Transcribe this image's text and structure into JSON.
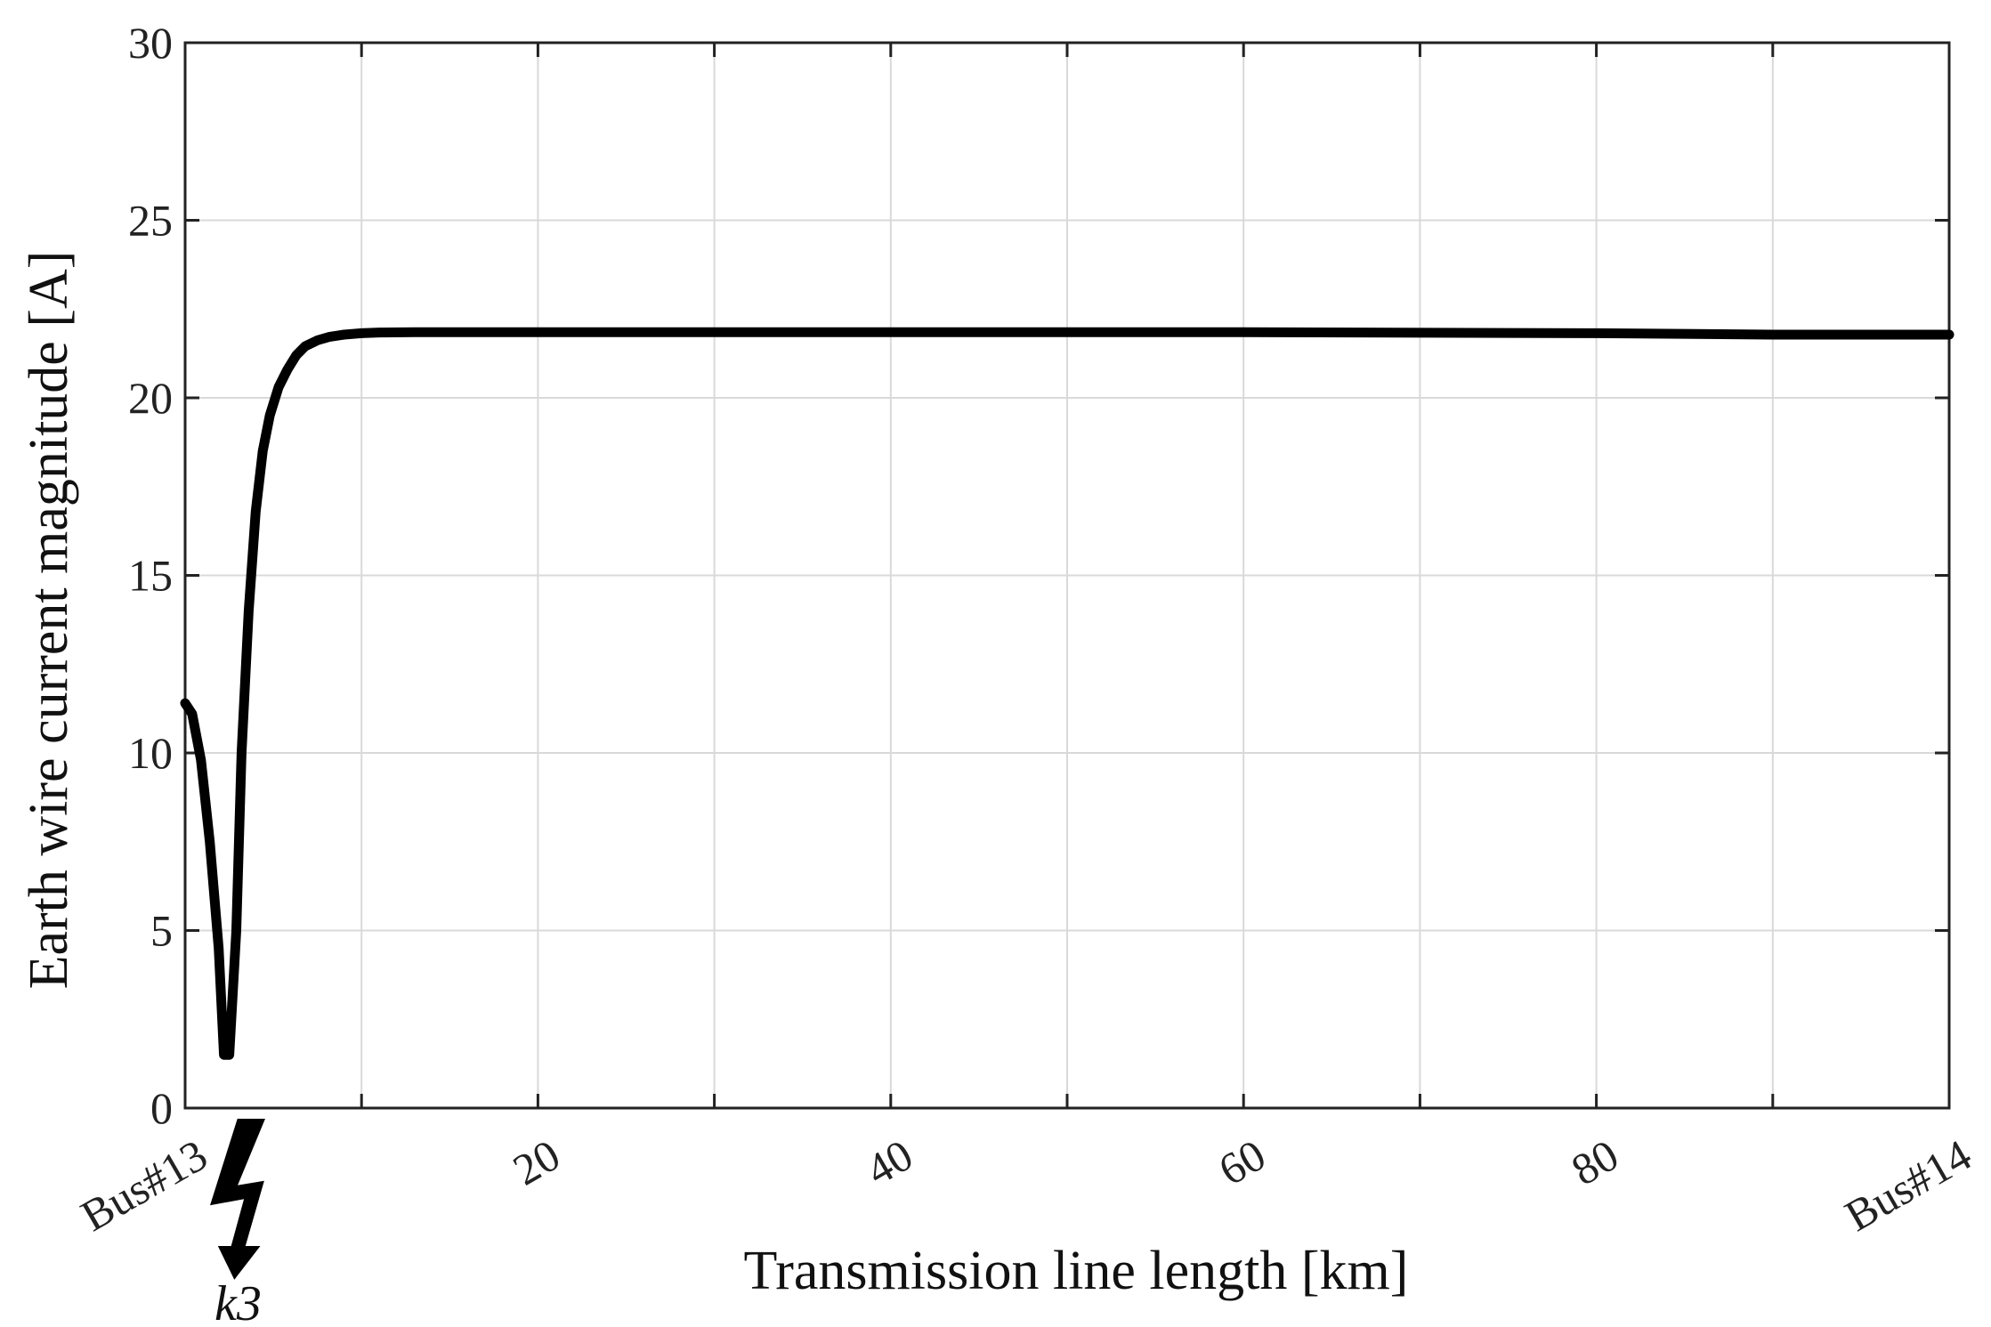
{
  "chart_data": {
    "type": "line",
    "xlabel": "Transmission line length [km]",
    "ylabel": "Earth wire current magnitude [A]",
    "xlim": [
      0,
      100
    ],
    "ylim": [
      0,
      30
    ],
    "x_ticks": [
      {
        "value": 0,
        "label": "Bus#13"
      },
      {
        "value": 20,
        "label": "20"
      },
      {
        "value": 40,
        "label": "40"
      },
      {
        "value": 60,
        "label": "60"
      },
      {
        "value": 80,
        "label": "80"
      },
      {
        "value": 100,
        "label": "Bus#14"
      }
    ],
    "x_minor_ticks": [
      10,
      30,
      50,
      70,
      90
    ],
    "y_ticks": [
      0,
      5,
      10,
      15,
      20,
      25,
      30
    ],
    "grid": true,
    "fault": {
      "label": "k3",
      "x": 3,
      "symbol": "lightning-bolt"
    },
    "series": [
      {
        "color": "#000000",
        "x": [
          0,
          0.4,
          0.9,
          1.4,
          1.9,
          2.2,
          2.5,
          2.9,
          3.2,
          3.6,
          4.0,
          4.4,
          4.8,
          5.3,
          5.8,
          6.3,
          6.8,
          7.5,
          8.2,
          9.0,
          10.0,
          11.0,
          13.0,
          20.0,
          40.0,
          60.0,
          80.0,
          90.0,
          100.0
        ],
        "y": [
          11.4,
          11.1,
          9.8,
          7.5,
          4.5,
          1.5,
          1.5,
          5.0,
          10.0,
          14.0,
          16.8,
          18.5,
          19.5,
          20.3,
          20.8,
          21.2,
          21.45,
          21.62,
          21.72,
          21.78,
          21.82,
          21.84,
          21.85,
          21.85,
          21.85,
          21.85,
          21.82,
          21.78,
          21.78
        ]
      }
    ]
  }
}
